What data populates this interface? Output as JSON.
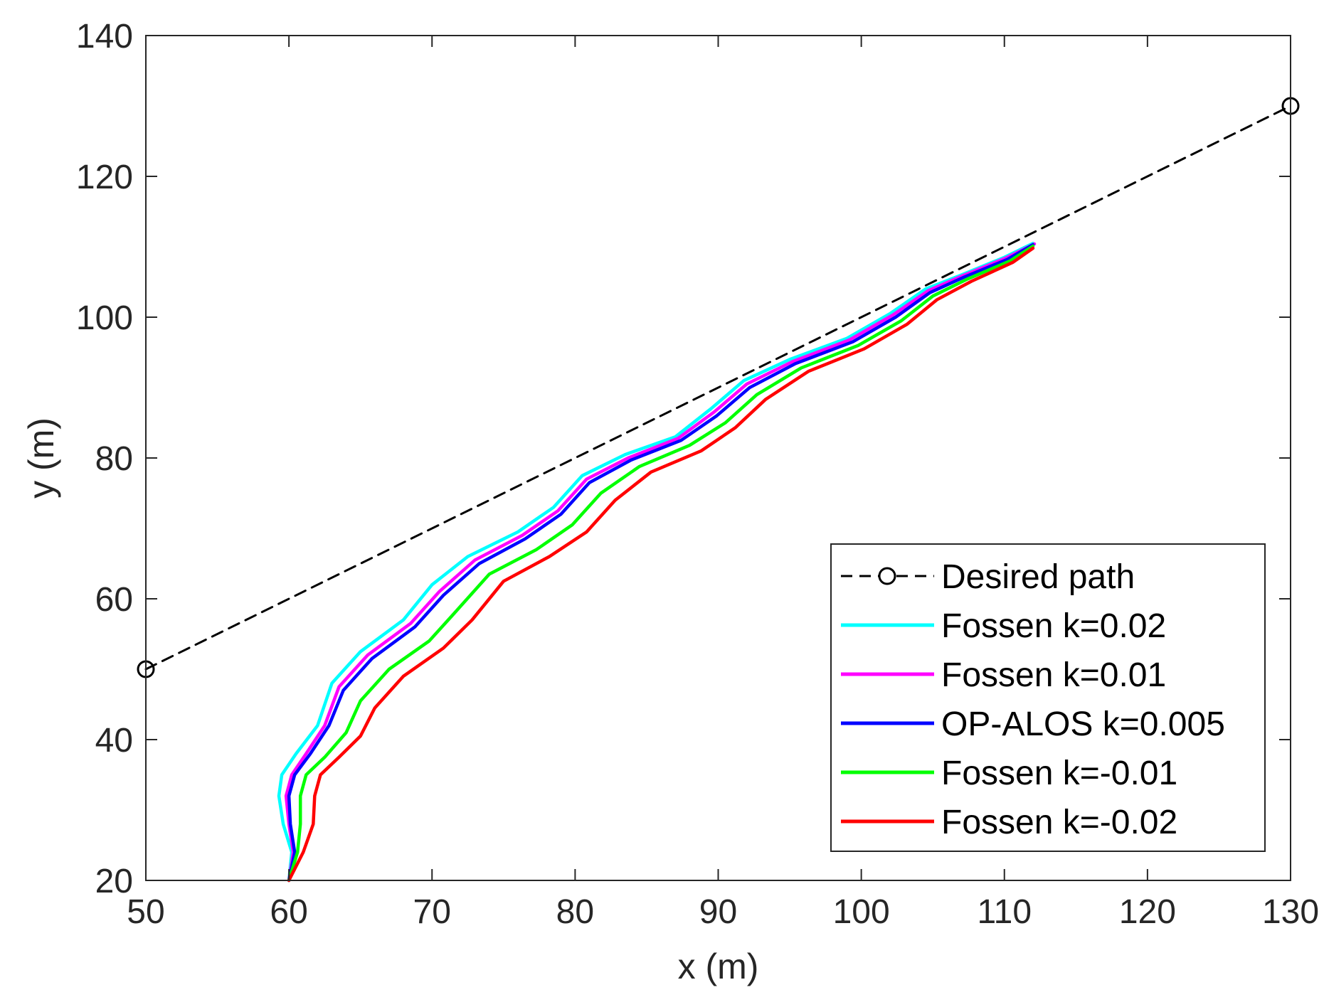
{
  "chart_data": {
    "type": "line",
    "title": "",
    "xlabel": "x (m)",
    "ylabel": "y (m)",
    "xlim": [
      50,
      130
    ],
    "ylim": [
      20,
      140
    ],
    "xticks": [
      50,
      60,
      70,
      80,
      90,
      100,
      110,
      120,
      130
    ],
    "yticks": [
      20,
      40,
      60,
      80,
      100,
      120,
      140
    ],
    "grid": false,
    "legend_position": "bottom-right",
    "series": [
      {
        "name": "Desired path",
        "color": "#000000",
        "style": "dashed",
        "marker": "circle",
        "x": [
          50,
          130
        ],
        "y": [
          50,
          130
        ]
      },
      {
        "name": "Fossen k=0.02",
        "color": "#00ffff",
        "style": "solid",
        "x": [
          60.0,
          60.2,
          59.6,
          59.3,
          59.5,
          60.5,
          62.0,
          63.0,
          65.0,
          68.0,
          70.0,
          72.5,
          76.0,
          78.5,
          80.5,
          83.5,
          87.0,
          89.5,
          91.8,
          95.0,
          99.0,
          102.0,
          104.5,
          107.0,
          110.0,
          112.0
        ],
        "y": [
          20.0,
          24.0,
          28.0,
          32.0,
          35.0,
          38.0,
          42.0,
          48.0,
          52.5,
          57.0,
          62.0,
          66.0,
          69.5,
          73.0,
          77.5,
          80.5,
          83.0,
          87.0,
          91.0,
          94.0,
          97.0,
          100.5,
          104.0,
          106.0,
          108.5,
          110.5
        ]
      },
      {
        "name": "Fossen k=0.01",
        "color": "#ff00ff",
        "style": "solid",
        "x": [
          60.0,
          60.3,
          60.0,
          59.8,
          60.2,
          61.2,
          62.5,
          63.5,
          65.5,
          68.5,
          70.5,
          73.0,
          76.3,
          78.8,
          80.8,
          83.7,
          87.2,
          89.7,
          92.0,
          95.2,
          99.2,
          102.2,
          104.7,
          107.1,
          110.1,
          112.1
        ],
        "y": [
          20.0,
          24.0,
          28.0,
          32.0,
          35.0,
          38.0,
          42.0,
          47.5,
          52.0,
          56.5,
          61.0,
          65.5,
          69.0,
          72.5,
          77.0,
          80.0,
          82.8,
          86.5,
          90.5,
          93.7,
          96.8,
          100.3,
          103.8,
          105.9,
          108.4,
          110.4
        ]
      },
      {
        "name": "OP-ALOS k=0.005",
        "color": "#0000ff",
        "style": "solid",
        "x": [
          60.0,
          60.4,
          60.1,
          60.0,
          60.4,
          61.5,
          62.8,
          63.8,
          65.8,
          68.8,
          70.8,
          73.3,
          76.5,
          79.0,
          81.0,
          83.9,
          87.4,
          89.9,
          92.2,
          95.4,
          99.4,
          102.4,
          104.8,
          107.2,
          110.2,
          112.0
        ],
        "y": [
          20.0,
          24.0,
          28.0,
          32.0,
          35.0,
          38.0,
          42.0,
          47.0,
          51.5,
          56.0,
          60.5,
          65.0,
          68.5,
          72.0,
          76.5,
          79.7,
          82.5,
          86.0,
          90.0,
          93.4,
          96.5,
          100.0,
          103.5,
          105.7,
          108.2,
          110.3
        ]
      },
      {
        "name": "Fossen k=-0.01",
        "color": "#00ff00",
        "style": "solid",
        "x": [
          60.0,
          60.6,
          60.8,
          60.8,
          61.2,
          62.5,
          64.0,
          65.0,
          67.0,
          69.8,
          71.8,
          74.0,
          77.3,
          79.8,
          81.8,
          84.5,
          88.0,
          90.5,
          92.7,
          95.8,
          99.8,
          102.8,
          105.0,
          107.4,
          110.4,
          112.0
        ],
        "y": [
          20.0,
          24.0,
          28.0,
          32.0,
          35.0,
          37.5,
          41.0,
          45.5,
          50.0,
          54.0,
          58.5,
          63.5,
          67.0,
          70.5,
          75.0,
          78.8,
          81.8,
          85.0,
          89.0,
          92.8,
          96.0,
          99.5,
          103.0,
          105.4,
          108.0,
          110.1
        ]
      },
      {
        "name": "Fossen k=-0.02",
        "color": "#ff0000",
        "style": "solid",
        "x": [
          60.0,
          61.0,
          61.7,
          61.8,
          62.2,
          63.5,
          65.0,
          66.0,
          68.0,
          70.8,
          72.8,
          75.0,
          78.2,
          80.8,
          82.8,
          85.3,
          88.8,
          91.2,
          93.3,
          96.3,
          100.2,
          103.2,
          105.3,
          107.7,
          110.6,
          112.0
        ],
        "y": [
          20.0,
          24.0,
          28.0,
          32.0,
          35.0,
          37.5,
          40.5,
          44.5,
          49.0,
          53.0,
          57.0,
          62.5,
          66.0,
          69.5,
          74.0,
          78.0,
          81.0,
          84.3,
          88.3,
          92.3,
          95.5,
          99.0,
          102.5,
          105.1,
          107.8,
          109.8
        ]
      }
    ]
  }
}
